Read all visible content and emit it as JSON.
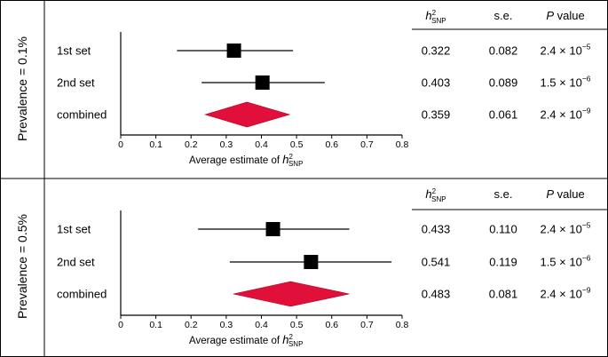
{
  "chart_data": [
    {
      "type": "forest",
      "panel_label": "Prevalence = 0.1%",
      "xlabel_prefix": "Average estimate of",
      "xlabel_main": "h",
      "xlabel_sup": "2",
      "xlabel_sub": "SNP",
      "xlim": [
        0,
        0.8
      ],
      "ticks": [
        "0",
        "0.1",
        "0.2",
        "0.3",
        "0.4",
        "0.5",
        "0.6",
        "0.7",
        "0.8"
      ],
      "tick_values": [
        0,
        0.1,
        0.2,
        0.3,
        0.4,
        0.5,
        0.6,
        0.7,
        0.8
      ],
      "headers": {
        "h2_main": "h",
        "h2_sup": "2",
        "h2_sub": "SNP",
        "se": "s.e.",
        "p_italic": "P",
        "p_rest": " value"
      },
      "rows": [
        {
          "label": "1st set",
          "estimate": 0.322,
          "ci_low": 0.16,
          "ci_high": 0.49,
          "marker": "square",
          "h2": "0.322",
          "se": "0.082",
          "p_base": "2.4 × 10",
          "p_exp": "−5"
        },
        {
          "label": "2nd set",
          "estimate": 0.403,
          "ci_low": 0.23,
          "ci_high": 0.58,
          "marker": "square",
          "h2": "0.403",
          "se": "0.089",
          "p_base": "1.5 × 10",
          "p_exp": "−6"
        },
        {
          "label": "combined",
          "estimate": 0.359,
          "ci_low": 0.24,
          "ci_high": 0.48,
          "marker": "diamond",
          "h2": "0.359",
          "se": "0.061",
          "p_base": "2.4 × 10",
          "p_exp": "−9"
        }
      ]
    },
    {
      "type": "forest",
      "panel_label": "Prevalence = 0.5%",
      "xlabel_prefix": "Average estimate of",
      "xlabel_main": "h",
      "xlabel_sup": "2",
      "xlabel_sub": "SNP",
      "xlim": [
        0,
        0.8
      ],
      "ticks": [
        "0",
        "0.1",
        "0.2",
        "0.3",
        "0.4",
        "0.5",
        "0.6",
        "0.7",
        "0.8"
      ],
      "tick_values": [
        0,
        0.1,
        0.2,
        0.3,
        0.4,
        0.5,
        0.6,
        0.7,
        0.8
      ],
      "headers": {
        "h2_main": "h",
        "h2_sup": "2",
        "h2_sub": "SNP",
        "se": "s.e.",
        "p_italic": "P",
        "p_rest": " value"
      },
      "rows": [
        {
          "label": "1st set",
          "estimate": 0.433,
          "ci_low": 0.22,
          "ci_high": 0.65,
          "marker": "square",
          "h2": "0.433",
          "se": "0.110",
          "p_base": "2.4 × 10",
          "p_exp": "−5"
        },
        {
          "label": "2nd set",
          "estimate": 0.541,
          "ci_low": 0.31,
          "ci_high": 0.77,
          "marker": "square",
          "h2": "0.541",
          "se": "0.119",
          "p_base": "1.5 × 10",
          "p_exp": "−6"
        },
        {
          "label": "combined",
          "estimate": 0.483,
          "ci_low": 0.32,
          "ci_high": 0.65,
          "marker": "diamond",
          "h2": "0.483",
          "se": "0.081",
          "p_base": "2.4 × 10",
          "p_exp": "−9"
        }
      ]
    }
  ],
  "colors": {
    "diamond": "#e0103a",
    "marker": "#000000",
    "line": "#000000",
    "border": "#000000"
  }
}
